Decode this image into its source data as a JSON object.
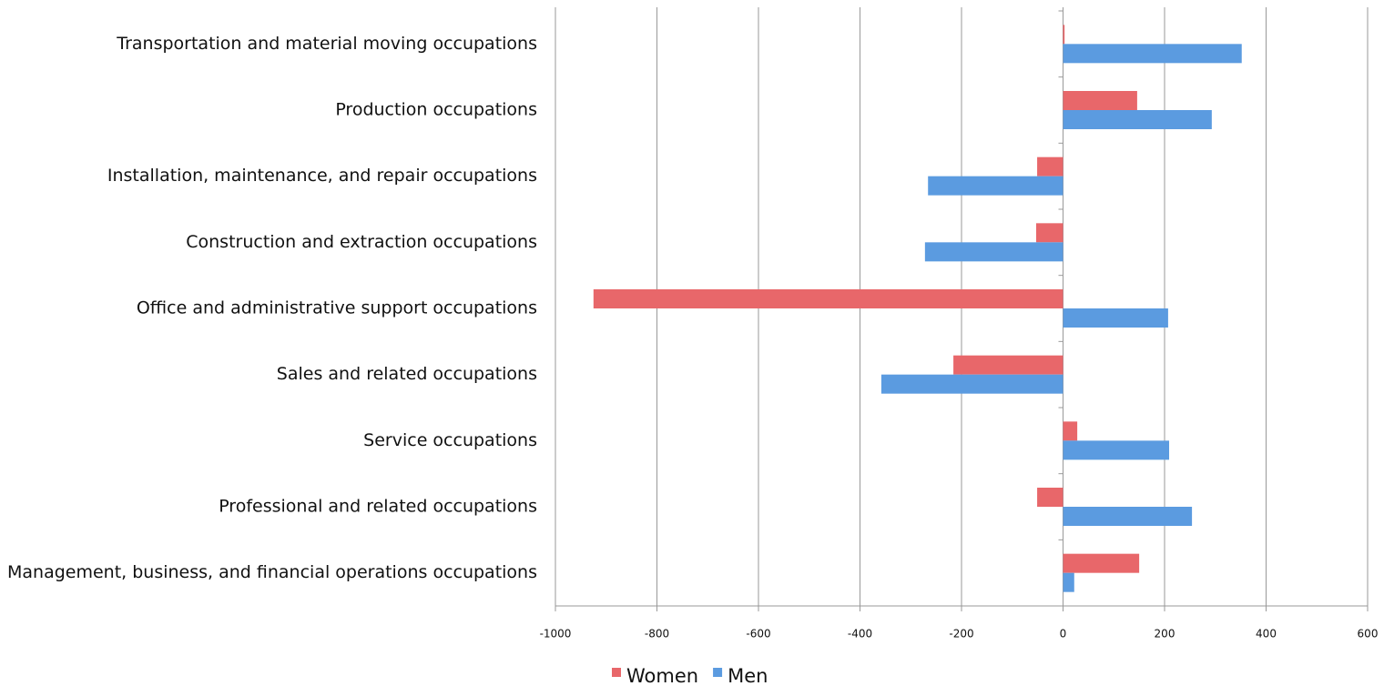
{
  "chart_data": {
    "type": "bar",
    "orientation": "horizontal",
    "categories": [
      "Transportation and material moving occupations",
      "Production occupations",
      "Installation, maintenance, and repair occupations",
      "Construction and extraction occupations",
      "Office and administrative support occupations",
      "Sales and related occupations",
      "Service occupations",
      "Professional and related occupations",
      "Management, business, and financial operations occupations"
    ],
    "series": [
      {
        "name": "Women",
        "color": "#e8676a",
        "values": [
          3,
          146,
          -51,
          -53,
          -925,
          -216,
          28,
          -51,
          150
        ]
      },
      {
        "name": "Men",
        "color": "#5b9be0",
        "values": [
          352,
          293,
          -266,
          -272,
          207,
          -358,
          209,
          254,
          22
        ]
      }
    ],
    "xlim": [
      -1000,
      600
    ],
    "xticks": [
      -1000,
      -800,
      -600,
      -400,
      -200,
      0,
      200,
      400,
      600
    ],
    "grid": true,
    "legend": "bottom"
  }
}
